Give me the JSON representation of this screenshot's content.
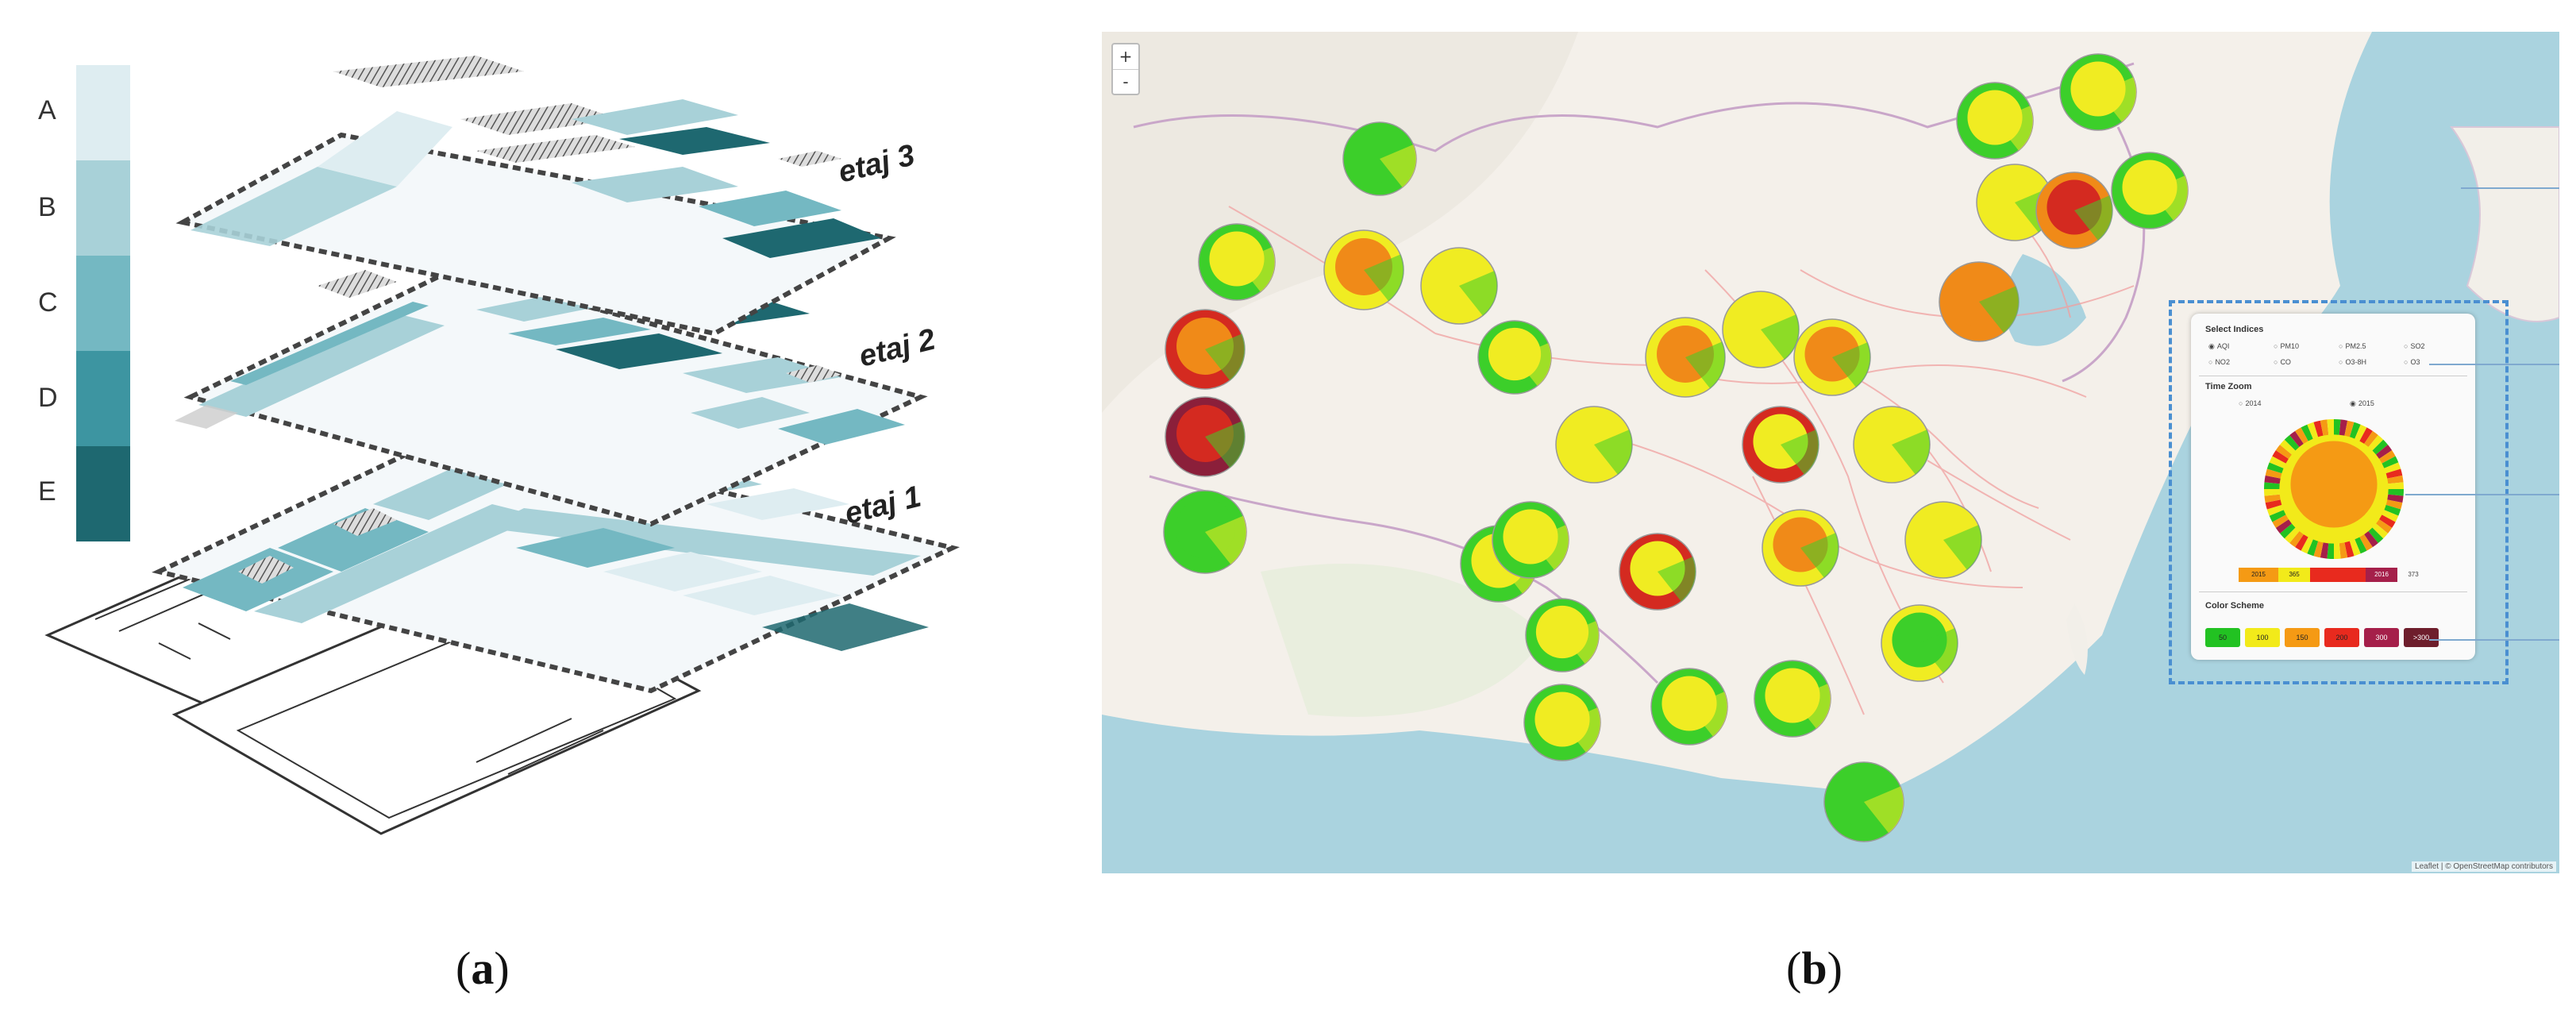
{
  "panel_a": {
    "legend": [
      "A",
      "B",
      "C",
      "D",
      "E"
    ],
    "legend_colors": [
      "#deedf1",
      "#a8d1d8",
      "#74b8c2",
      "#3d95a1",
      "#1e6870"
    ],
    "floor_labels": [
      "etaj 3",
      "etaj 2",
      "etaj 1"
    ],
    "caption_letter": "a"
  },
  "panel_b": {
    "caption_letter": "b",
    "zoom_in": "+",
    "zoom_out": "-",
    "attribution": "Leaflet | © OpenStreetMap contributors",
    "select_indices_title": "Select Indices",
    "indices": [
      "AQI",
      "PM10",
      "PM2.5",
      "SO2",
      "NO2",
      "CO",
      "O3-8H",
      "O3"
    ],
    "time_zoom_title": "Time Zoom",
    "time_options": [
      "2014",
      "2015"
    ],
    "time_range": [
      "2015",
      "365",
      "2016",
      "373"
    ],
    "color_scheme_title": "Color Scheme",
    "color_scheme_labels": [
      "50",
      "100",
      "150",
      "200",
      "300",
      ">300"
    ],
    "color_scheme_colors": [
      "#22c222",
      "#f2ea1a",
      "#f59a14",
      "#e82a1e",
      "#a51f4a",
      "#6e1e2c"
    ]
  }
}
